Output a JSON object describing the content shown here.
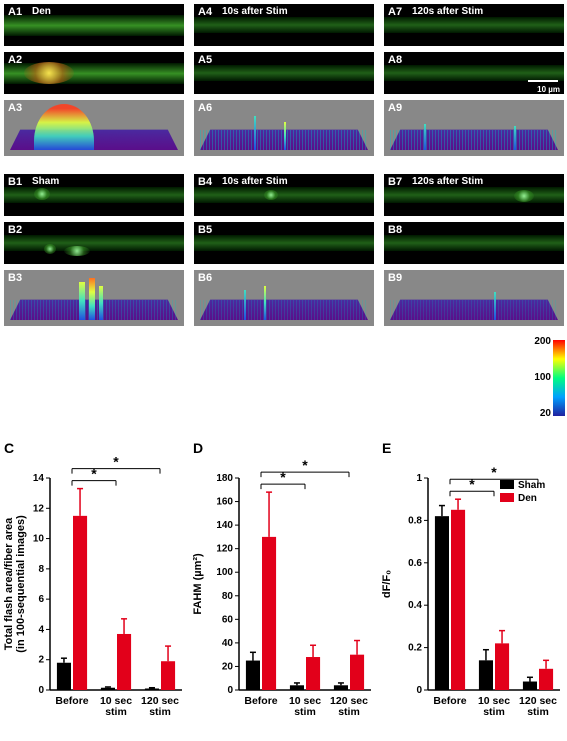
{
  "panels": {
    "A": {
      "row_label": "Den",
      "cols": [
        {
          "ids": [
            "A1",
            "A2",
            "A3"
          ],
          "header": "Den"
        },
        {
          "ids": [
            "A4",
            "A5",
            "A6"
          ],
          "header": "10s after Stim"
        },
        {
          "ids": [
            "A7",
            "A8",
            "A9"
          ],
          "header": "120s after Stim"
        }
      ]
    },
    "B": {
      "row_label": "Sham",
      "cols": [
        {
          "ids": [
            "B1",
            "B2",
            "B3"
          ],
          "header": "Sham"
        },
        {
          "ids": [
            "B4",
            "B5",
            "B6"
          ],
          "header": "10s after Stim"
        },
        {
          "ids": [
            "B7",
            "B8",
            "B9"
          ],
          "header": "120s after Stim"
        }
      ]
    },
    "scale_bar_text": "10 µm"
  },
  "colorbar": {
    "max": "200",
    "mid": "100",
    "min": "20"
  },
  "legend": {
    "sham": "Sham",
    "den": "Den"
  },
  "colors": {
    "sham": "#000000",
    "den": "#e2001a",
    "axis": "#000000",
    "sig_line": "#000000"
  },
  "axis_fontsize": 10,
  "chart_C": {
    "letter": "C",
    "ylabel": "Total flash area/fiber area\n(in 100-sequential images)",
    "ylim": [
      0,
      14
    ],
    "yticks": [
      0,
      2,
      4,
      6,
      8,
      10,
      12,
      14
    ],
    "categories": [
      "Before",
      "10 sec\nstim",
      "120 sec\nstim"
    ],
    "sham": {
      "values": [
        1.8,
        0.15,
        0.1
      ],
      "err": [
        0.3,
        0.05,
        0.05
      ]
    },
    "den": {
      "values": [
        11.5,
        3.7,
        1.9
      ],
      "err": [
        1.8,
        1.0,
        1.0
      ]
    },
    "sig_pairs": [
      [
        0,
        1
      ],
      [
        0,
        2
      ]
    ],
    "sig_label": "*"
  },
  "chart_D": {
    "letter": "D",
    "ylabel": "FAHM (µm²)",
    "ylim": [
      0,
      180
    ],
    "yticks": [
      0,
      20,
      40,
      60,
      80,
      100,
      120,
      140,
      160,
      180
    ],
    "categories": [
      "Before",
      "10 sec\nstim",
      "120 sec\nstim"
    ],
    "sham": {
      "values": [
        25,
        4,
        4
      ],
      "err": [
        7,
        2,
        2
      ]
    },
    "den": {
      "values": [
        130,
        28,
        30
      ],
      "err": [
        38,
        10,
        12
      ]
    },
    "sig_pairs": [
      [
        0,
        1
      ],
      [
        0,
        2
      ]
    ],
    "sig_label": "*"
  },
  "chart_E": {
    "letter": "E",
    "ylabel": "dF/F₀",
    "ylim": [
      0,
      1.0
    ],
    "yticks": [
      0,
      0.2,
      0.4,
      0.6,
      0.8,
      1.0
    ],
    "categories": [
      "Before",
      "10 sec\nstim",
      "120 sec\nstim"
    ],
    "sham": {
      "values": [
        0.82,
        0.14,
        0.04
      ],
      "err": [
        0.05,
        0.05,
        0.02
      ]
    },
    "den": {
      "values": [
        0.85,
        0.22,
        0.1
      ],
      "err": [
        0.05,
        0.06,
        0.04
      ]
    },
    "sig_pairs": [
      [
        0,
        1
      ],
      [
        0,
        2
      ]
    ],
    "sig_label": "*"
  }
}
